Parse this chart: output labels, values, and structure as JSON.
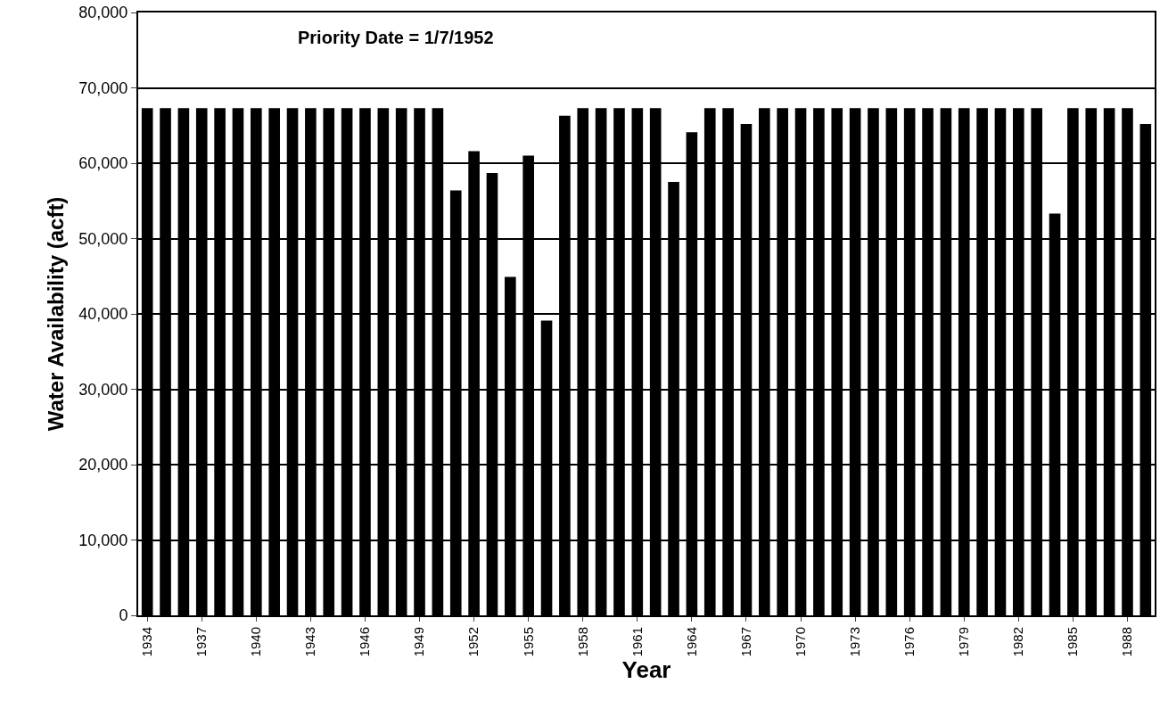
{
  "chart_data": {
    "type": "bar",
    "xlabel": "Year",
    "ylabel": "Water Availability (acft)",
    "annotations": [
      "Priority Date = 1/7/1952"
    ],
    "categories": [
      "1934",
      null,
      null,
      "1937",
      null,
      null,
      "1940",
      null,
      null,
      "1943",
      null,
      null,
      "1946",
      null,
      null,
      "1949",
      null,
      null,
      "1952",
      null,
      null,
      "1955",
      null,
      null,
      "1958",
      null,
      null,
      "1961",
      null,
      null,
      "1964",
      null,
      null,
      "1967",
      null,
      null,
      "1970",
      null,
      null,
      "1973",
      null,
      null,
      "1976",
      null,
      null,
      "1979",
      null,
      null,
      "1982",
      null,
      null,
      "1985",
      null,
      null,
      "1988",
      null
    ],
    "values": [
      67300,
      67300,
      67300,
      67300,
      67300,
      67300,
      67300,
      67300,
      67300,
      67300,
      67300,
      67300,
      67300,
      67300,
      67300,
      67300,
      67300,
      56400,
      61600,
      58700,
      44900,
      61000,
      39100,
      66300,
      67300,
      67300,
      67300,
      67300,
      67300,
      57500,
      64100,
      67300,
      67300,
      65200,
      67300,
      67300,
      67300,
      67300,
      67300,
      67300,
      67300,
      67300,
      67300,
      67300,
      67300,
      67300,
      67300,
      67300,
      67300,
      67300,
      53300,
      67300,
      67300,
      67300,
      67300,
      65200
    ],
    "color": "#000000",
    "ylim": [
      0,
      80000
    ],
    "yticks": [
      {
        "value": 0,
        "label": "0"
      },
      {
        "value": 10000,
        "label": "10,000"
      },
      {
        "value": 20000,
        "label": "20,000"
      },
      {
        "value": 30000,
        "label": "30,000"
      },
      {
        "value": 40000,
        "label": "40,000"
      },
      {
        "value": 50000,
        "label": "50,000"
      },
      {
        "value": 60000,
        "label": "60,000"
      },
      {
        "value": 70000,
        "label": "70,000"
      },
      {
        "value": 80000,
        "label": "80,000"
      }
    ],
    "grid": "y"
  }
}
